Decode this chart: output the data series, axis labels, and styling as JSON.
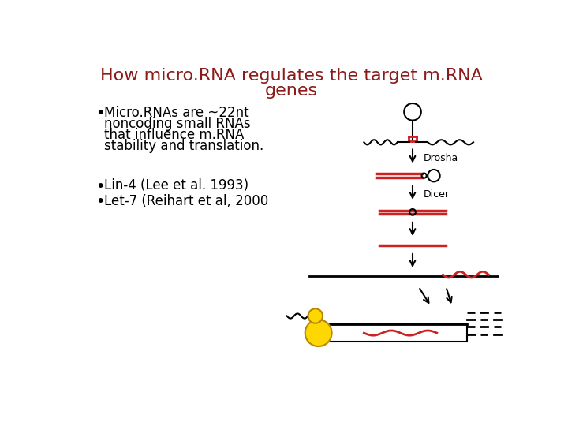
{
  "title_line1": "How micro.RNA regulates the target m.RNA",
  "title_line2": "genes",
  "title_color": "#8B1A1A",
  "title_fontsize": 16,
  "bullet1_line1": "Micro.RNAs are ~22nt",
  "bullet1_line2": "noncoding small RNAs",
  "bullet1_line3": "that influence m.RNA",
  "bullet1_line4": "stability and translation.",
  "bullet2": "Lin-4 (Lee et al. 1993)",
  "bullet3": "Let-7 (Reihart et al, 2000",
  "bullet_fontsize": 12,
  "bg_color": "#ffffff",
  "text_color": "#000000",
  "red_color": "#cc2222",
  "label_drosha": "Drosha",
  "label_dicer": "Dicer"
}
